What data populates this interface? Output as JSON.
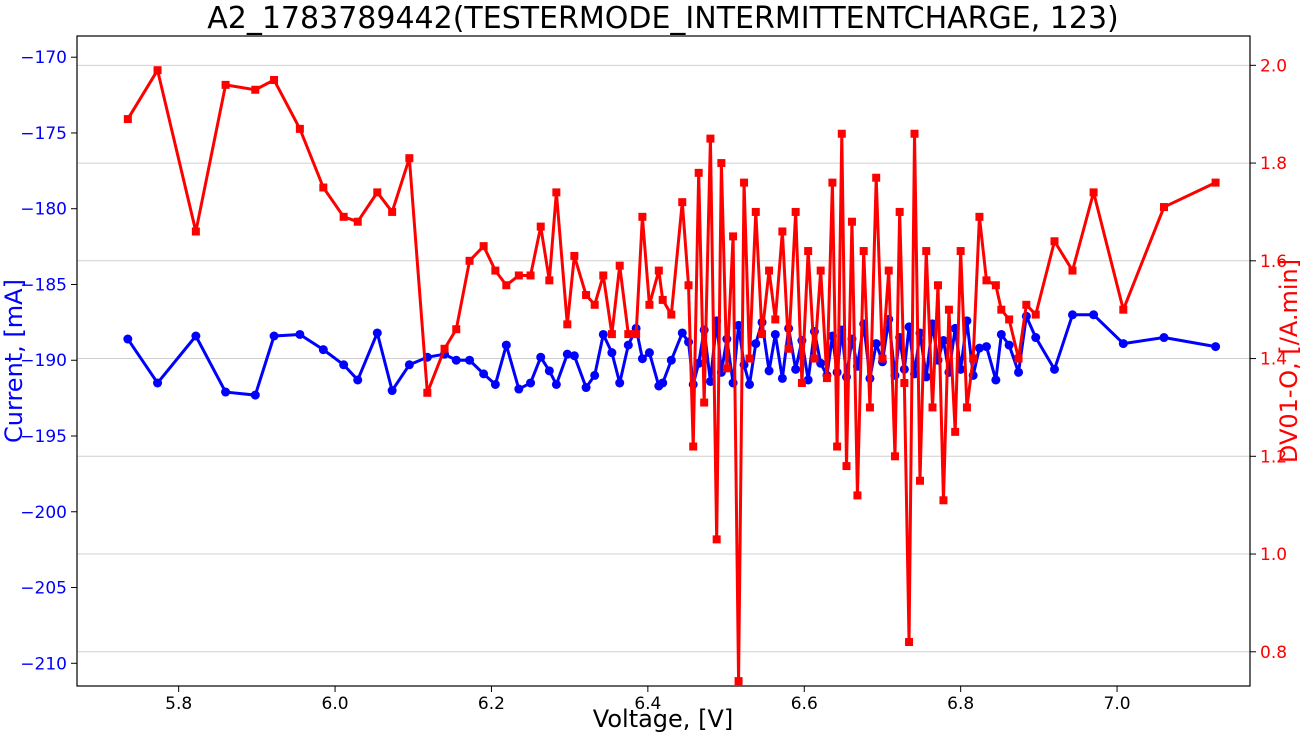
{
  "chart_data": {
    "type": "line",
    "title": "A2_1783789442(TESTERMODE_INTERMITTENTCHARGE, 123)",
    "xlabel": "Voltage, [V]",
    "ylabel_left": "Current, [mA]",
    "ylabel_right": "DV01-O, [/A.min]",
    "xlim": [
      5.67,
      7.17
    ],
    "ylim_left": [
      -211.5,
      -168.6
    ],
    "ylim_right": [
      0.73,
      2.06
    ],
    "x_ticks": [
      "5.8",
      "6.0",
      "6.2",
      "6.4",
      "6.6",
      "6.8",
      "7.0"
    ],
    "y_left_ticks": [
      "−170",
      "−175",
      "−180",
      "−185",
      "−190",
      "−195",
      "−200",
      "−205",
      "−210"
    ],
    "y_right_ticks": [
      "2.0",
      "1.8",
      "1.6",
      "1.4",
      "1.2",
      "1.0",
      "0.8"
    ],
    "grid": "horizontal",
    "colors": {
      "left": "#0000ff",
      "right": "#ff0000",
      "grid": "#d0d0d0"
    },
    "series": [
      {
        "axis": "left",
        "marker": "circle",
        "color": "#0000ff",
        "x": [
          5.735,
          5.773,
          5.822,
          5.86,
          5.898,
          5.922,
          5.955,
          5.985,
          6.011,
          6.029,
          6.054,
          6.073,
          6.095,
          6.118,
          6.14,
          6.155,
          6.172,
          6.19,
          6.205,
          6.219,
          6.235,
          6.25,
          6.263,
          6.274,
          6.283,
          6.297,
          6.306,
          6.321,
          6.332,
          6.343,
          6.354,
          6.364,
          6.375,
          6.385,
          6.393,
          6.402,
          6.414,
          6.419,
          6.43,
          6.444,
          6.452,
          6.458,
          6.465,
          6.472,
          6.48,
          6.488,
          6.494,
          6.501,
          6.509,
          6.516,
          6.523,
          6.53,
          6.538,
          6.546,
          6.555,
          6.563,
          6.572,
          6.58,
          6.589,
          6.597,
          6.605,
          6.613,
          6.621,
          6.629,
          6.636,
          6.642,
          6.648,
          6.654,
          6.661,
          6.668,
          6.676,
          6.684,
          6.692,
          6.7,
          6.708,
          6.716,
          6.722,
          6.728,
          6.734,
          6.741,
          6.748,
          6.756,
          6.764,
          6.771,
          6.778,
          6.785,
          6.793,
          6.8,
          6.808,
          6.816,
          6.824,
          6.833,
          6.845,
          6.852,
          6.862,
          6.874,
          6.884,
          6.896,
          6.92,
          6.943,
          6.97,
          7.008,
          7.06,
          7.126
        ],
        "values": [
          -188.6,
          -191.5,
          -188.4,
          -192.1,
          -192.3,
          -188.4,
          -188.3,
          -189.3,
          -190.3,
          -191.3,
          -188.2,
          -192.0,
          -190.3,
          -189.8,
          -189.6,
          -190.0,
          -190.0,
          -190.9,
          -191.6,
          -189.0,
          -191.9,
          -191.5,
          -189.8,
          -190.7,
          -191.6,
          -189.6,
          -189.7,
          -191.8,
          -191.0,
          -188.3,
          -189.5,
          -191.5,
          -189.0,
          -187.9,
          -189.9,
          -189.5,
          -191.7,
          -191.5,
          -190.0,
          -188.2,
          -188.8,
          -191.6,
          -190.2,
          -188.0,
          -191.4,
          -187.4,
          -190.8,
          -188.6,
          -191.5,
          -187.7,
          -190.3,
          -191.6,
          -188.9,
          -187.5,
          -190.7,
          -188.3,
          -191.2,
          -187.9,
          -190.6,
          -188.7,
          -191.3,
          -188.1,
          -190.2,
          -191.0,
          -188.4,
          -190.8,
          -188.0,
          -191.1,
          -188.6,
          -190.4,
          -187.6,
          -191.2,
          -188.9,
          -190.1,
          -187.3,
          -191.0,
          -188.5,
          -190.6,
          -187.8,
          -190.9,
          -188.2,
          -191.1,
          -187.6,
          -190.0,
          -188.7,
          -190.8,
          -187.9,
          -190.6,
          -187.4,
          -191.0,
          -189.2,
          -189.1,
          -191.3,
          -188.3,
          -189.0,
          -190.8,
          -187.1,
          -188.5,
          -190.6,
          -187.0,
          -187.0,
          -188.9,
          -188.5,
          -189.1
        ]
      },
      {
        "axis": "right",
        "marker": "square",
        "color": "#ff0000",
        "x": [
          5.735,
          5.773,
          5.822,
          5.86,
          5.898,
          5.922,
          5.955,
          5.985,
          6.011,
          6.029,
          6.054,
          6.073,
          6.095,
          6.118,
          6.14,
          6.155,
          6.172,
          6.19,
          6.205,
          6.219,
          6.235,
          6.25,
          6.263,
          6.274,
          6.283,
          6.297,
          6.306,
          6.321,
          6.332,
          6.343,
          6.354,
          6.364,
          6.375,
          6.385,
          6.393,
          6.402,
          6.414,
          6.419,
          6.43,
          6.444,
          6.452,
          6.458,
          6.465,
          6.472,
          6.48,
          6.488,
          6.494,
          6.501,
          6.509,
          6.516,
          6.523,
          6.53,
          6.538,
          6.546,
          6.555,
          6.563,
          6.572,
          6.58,
          6.589,
          6.597,
          6.605,
          6.613,
          6.621,
          6.629,
          6.636,
          6.642,
          6.648,
          6.654,
          6.661,
          6.668,
          6.676,
          6.684,
          6.692,
          6.7,
          6.708,
          6.716,
          6.722,
          6.728,
          6.734,
          6.741,
          6.748,
          6.756,
          6.764,
          6.771,
          6.778,
          6.785,
          6.793,
          6.8,
          6.808,
          6.816,
          6.824,
          6.833,
          6.845,
          6.852,
          6.862,
          6.874,
          6.884,
          6.896,
          6.92,
          6.943,
          6.97,
          7.008,
          7.06,
          7.126
        ],
        "values": [
          1.89,
          1.99,
          1.66,
          1.96,
          1.95,
          1.97,
          1.87,
          1.75,
          1.69,
          1.68,
          1.74,
          1.7,
          1.81,
          1.33,
          1.42,
          1.46,
          1.6,
          1.63,
          1.58,
          1.55,
          1.57,
          1.57,
          1.67,
          1.56,
          1.74,
          1.47,
          1.61,
          1.53,
          1.51,
          1.57,
          1.45,
          1.59,
          1.45,
          1.45,
          1.69,
          1.51,
          1.58,
          1.52,
          1.49,
          1.72,
          1.55,
          1.22,
          1.78,
          1.31,
          1.85,
          1.03,
          1.8,
          1.38,
          1.65,
          0.74,
          1.76,
          1.4,
          1.7,
          1.45,
          1.58,
          1.48,
          1.66,
          1.42,
          1.7,
          1.35,
          1.62,
          1.4,
          1.58,
          1.36,
          1.76,
          1.22,
          1.86,
          1.18,
          1.68,
          1.12,
          1.62,
          1.3,
          1.77,
          1.4,
          1.58,
          1.2,
          1.7,
          1.35,
          0.82,
          1.86,
          1.15,
          1.62,
          1.3,
          1.55,
          1.11,
          1.5,
          1.25,
          1.62,
          1.3,
          1.4,
          1.69,
          1.56,
          1.55,
          1.5,
          1.48,
          1.4,
          1.51,
          1.49,
          1.64,
          1.58,
          1.74,
          1.5,
          1.71,
          1.76
        ]
      }
    ]
  }
}
